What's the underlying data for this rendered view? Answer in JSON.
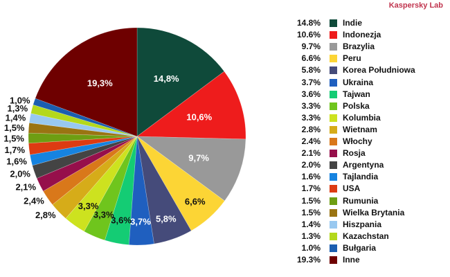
{
  "brand": "Kaspersky Lab",
  "chart_data": {
    "type": "pie",
    "title": "",
    "start_angle_deg": 0,
    "direction": "clockwise",
    "legend_position": "right",
    "slices": [
      {
        "label": "Indie",
        "value": 14.8,
        "legend_text": "14.8%",
        "pie_text": "14,8%",
        "color": "#0f4a3a",
        "label_color": "#ffffff",
        "label_inside": true
      },
      {
        "label": "Indonezja",
        "value": 10.6,
        "legend_text": "10.6%",
        "pie_text": "10,6%",
        "color": "#ee1c1c",
        "label_color": "#ffffff",
        "label_inside": true
      },
      {
        "label": "Brazylia",
        "value": 9.7,
        "legend_text": "9.7%",
        "pie_text": "9,7%",
        "color": "#999999",
        "label_color": "#ffffff",
        "label_inside": true
      },
      {
        "label": "Peru",
        "value": 6.6,
        "legend_text": "6.6%",
        "pie_text": "6,6%",
        "color": "#fcd535",
        "label_color": "#111111",
        "label_inside": true
      },
      {
        "label": "Korea Południowa",
        "value": 5.8,
        "legend_text": "5.8%",
        "pie_text": "5,8%",
        "color": "#454b7a",
        "label_color": "#ffffff",
        "label_inside": true
      },
      {
        "label": "Ukraina",
        "value": 3.7,
        "legend_text": "3.7%",
        "pie_text": "3,7%",
        "color": "#1f5fbf",
        "label_color": "#ffffff",
        "label_inside": true
      },
      {
        "label": "Tajwan",
        "value": 3.6,
        "legend_text": "3.6%",
        "pie_text": "3,6%",
        "color": "#14cc74",
        "label_color": "#111111",
        "label_inside": true
      },
      {
        "label": "Polska",
        "value": 3.3,
        "legend_text": "3.3%",
        "pie_text": "3,3%",
        "color": "#6fc51d",
        "label_color": "#111111",
        "label_inside": true
      },
      {
        "label": "Kolumbia",
        "value": 3.3,
        "legend_text": "3.3%",
        "pie_text": "3,3%",
        "color": "#cde21f",
        "label_color": "#111111",
        "label_inside": true
      },
      {
        "label": "Wietnam",
        "value": 2.8,
        "legend_text": "2.8%",
        "pie_text": "2,8%",
        "color": "#d6ac19",
        "label_color": "#111111",
        "label_inside": false
      },
      {
        "label": "Włochy",
        "value": 2.4,
        "legend_text": "2.4%",
        "pie_text": "2,4%",
        "color": "#d9781a",
        "label_color": "#111111",
        "label_inside": false
      },
      {
        "label": "Rosja",
        "value": 2.1,
        "legend_text": "2.1%",
        "pie_text": "2,1%",
        "color": "#960f4b",
        "label_color": "#111111",
        "label_inside": false
      },
      {
        "label": "Argentyna",
        "value": 2.0,
        "legend_text": "2.0%",
        "pie_text": "2,0%",
        "color": "#444444",
        "label_color": "#111111",
        "label_inside": false
      },
      {
        "label": "Tajlandia",
        "value": 1.6,
        "legend_text": "1.6%",
        "pie_text": "1,6%",
        "color": "#1683e0",
        "label_color": "#111111",
        "label_inside": false
      },
      {
        "label": "USA",
        "value": 1.7,
        "legend_text": "1.7%",
        "pie_text": "1,7%",
        "color": "#dd3b12",
        "label_color": "#111111",
        "label_inside": false
      },
      {
        "label": "Rumunia",
        "value": 1.5,
        "legend_text": "1.5%",
        "pie_text": "1,5%",
        "color": "#6e9e12",
        "label_color": "#111111",
        "label_inside": false
      },
      {
        "label": "Wielka Brytania",
        "value": 1.5,
        "legend_text": "1.5%",
        "pie_text": "1,5%",
        "color": "#9a7412",
        "label_color": "#111111",
        "label_inside": false
      },
      {
        "label": "Hiszpania",
        "value": 1.4,
        "legend_text": "1.4%",
        "pie_text": "1,4%",
        "color": "#98c8f0",
        "label_color": "#111111",
        "label_inside": false
      },
      {
        "label": "Kazachstan",
        "value": 1.3,
        "legend_text": "1.3%",
        "pie_text": "1,3%",
        "color": "#b4d81c",
        "label_color": "#111111",
        "label_inside": false
      },
      {
        "label": "Bułgaria",
        "value": 1.0,
        "legend_text": "1.0%",
        "pie_text": "1,0%",
        "color": "#1b5eb0",
        "label_color": "#111111",
        "label_inside": false
      },
      {
        "label": "Inne",
        "value": 19.3,
        "legend_text": "19.3%",
        "pie_text": "19,3%",
        "color": "#6e0000",
        "label_color": "#ffffff",
        "label_inside": true
      }
    ]
  }
}
